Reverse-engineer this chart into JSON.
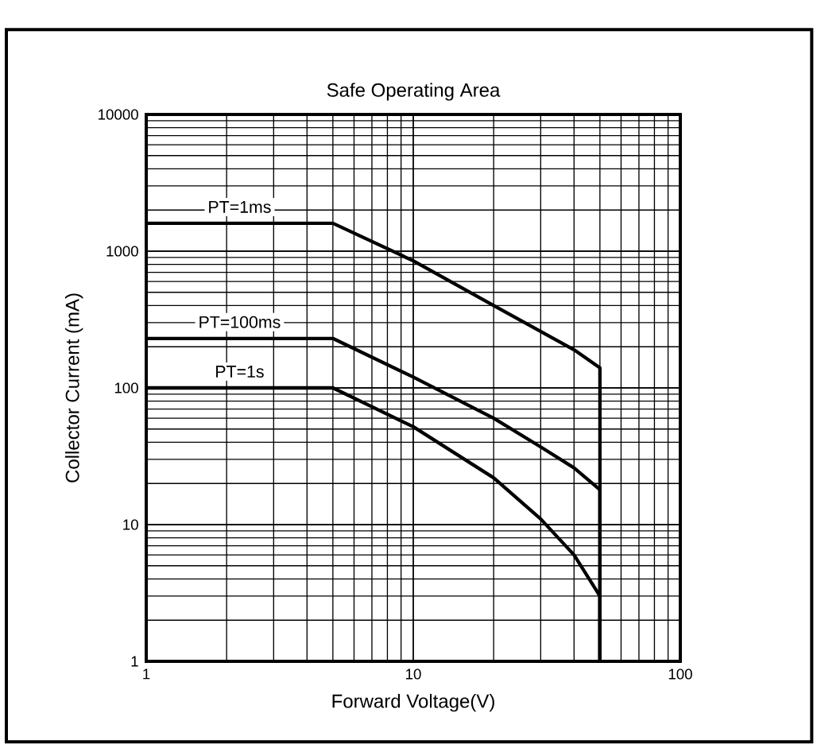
{
  "chart_data": {
    "type": "line",
    "title": "Safe Operating Area",
    "xlabel": "Forward Voltage(V)",
    "ylabel": "Collector Current (mA)",
    "log": "xy",
    "grid": true,
    "legend": false,
    "line_style": "solid",
    "marker": "none",
    "xlim": [
      1,
      100
    ],
    "ylim": [
      1,
      10000
    ],
    "xticks": [
      1,
      10,
      100
    ],
    "yticks": [
      1,
      10,
      100,
      1000,
      10000
    ],
    "series": [
      {
        "name": "PT=1ms",
        "color": "#000000",
        "x": [
          1,
          5,
          10,
          20,
          40,
          50,
          50
        ],
        "values": [
          1600,
          1600,
          850,
          400,
          190,
          140,
          1
        ]
      },
      {
        "name": "PT=100ms",
        "color": "#000000",
        "x": [
          1,
          5,
          10,
          20,
          30,
          40,
          50,
          50
        ],
        "values": [
          230,
          230,
          120,
          60,
          37,
          26,
          18,
          1
        ]
      },
      {
        "name": "PT=1s",
        "color": "#000000",
        "x": [
          1,
          5,
          10,
          20,
          30,
          40,
          50,
          50
        ],
        "values": [
          100,
          100,
          52,
          22,
          11,
          6,
          3,
          1
        ]
      }
    ]
  }
}
